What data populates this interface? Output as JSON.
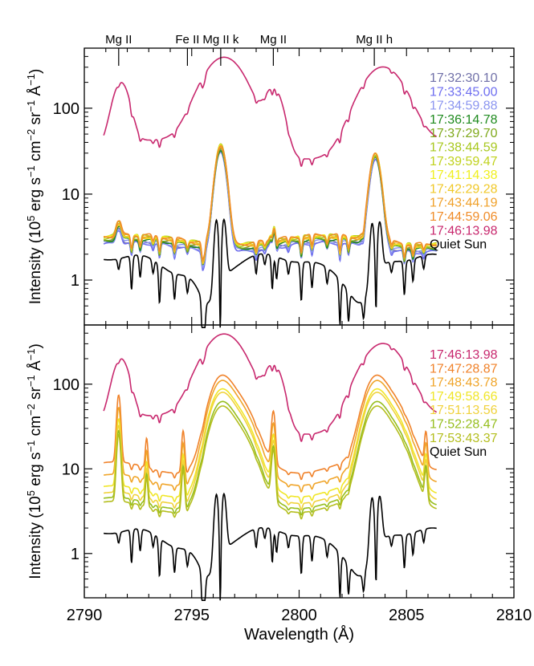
{
  "chart_data": [
    {
      "type": "line",
      "panel": "top",
      "yscale": "log",
      "xlim": [
        2790,
        2810
      ],
      "ylim": [
        0.3,
        500
      ],
      "ylabel": {
        "pre": "Intensity (10",
        "sup1": "5",
        "mid1": " erg s",
        "sup2": "−1",
        "mid2": " cm",
        "sup3": "−2",
        "mid3": " sr",
        "sup4": "−1",
        "mid4": " Å",
        "sup5": "−1",
        "post": ")"
      },
      "yticks": [
        1,
        10,
        100
      ],
      "ytick_labels": [
        "1",
        "10",
        "100"
      ],
      "line_ids": [
        {
          "label": "Mg II",
          "x": 2791.6
        },
        {
          "label": "Fe II",
          "x": 2794.8
        },
        {
          "label": "Mg II k",
          "x": 2796.35
        },
        {
          "label": "Mg II",
          "x": 2798.8
        },
        {
          "label": "Mg II h",
          "x": 2803.5
        }
      ],
      "legend_position": "right",
      "series": [
        {
          "name": "17:32:30.10",
          "color": "#7070a8",
          "scale": 1.04
        },
        {
          "name": "17:33:45.00",
          "color": "#6e6ef0",
          "scale": 1.0
        },
        {
          "name": "17:34:59.88",
          "color": "#8c96f0",
          "scale": 1.05
        },
        {
          "name": "17:36:14.78",
          "color": "#1e8a1e",
          "scale": 1.1
        },
        {
          "name": "17:37:29.70",
          "color": "#7ea81a",
          "scale": 1.15
        },
        {
          "name": "17:38:44.59",
          "color": "#a8c81e",
          "scale": 1.2
        },
        {
          "name": "17:39:59.47",
          "color": "#c0d21e",
          "scale": 1.23
        },
        {
          "name": "17:41:14.38",
          "color": "#f0f01e",
          "scale": 1.2
        },
        {
          "name": "17:42:29.28",
          "color": "#f0c828",
          "scale": 1.18
        },
        {
          "name": "17:43:44.19",
          "color": "#f0a028",
          "scale": 1.21
        },
        {
          "name": "17:44:59.06",
          "color": "#f08c28",
          "scale": 1.25
        },
        {
          "name": "17:46:13.98",
          "color": "#c8286e",
          "scale": 0
        },
        {
          "name": "Quiet Sun",
          "color": "#000000",
          "scale": 0
        }
      ]
    },
    {
      "type": "line",
      "panel": "bottom",
      "yscale": "log",
      "xlim": [
        2790,
        2810
      ],
      "ylim": [
        0.3,
        500
      ],
      "xlabel": "Wavelength (Å)",
      "ylabel": {
        "pre": "Intensity (10",
        "sup1": "5",
        "mid1": " erg s",
        "sup2": "−1",
        "mid2": " cm",
        "sup3": "−2",
        "mid3": " sr",
        "sup4": "−1",
        "mid4": " Å",
        "sup5": "−1",
        "post": ")"
      },
      "xticks": [
        2790,
        2795,
        2800,
        2805,
        2810
      ],
      "xtick_labels": [
        "2790",
        "2795",
        "2800",
        "2805",
        "2810"
      ],
      "yticks": [
        1,
        10,
        100
      ],
      "ytick_labels": [
        "1",
        "10",
        "100"
      ],
      "legend_position": "right",
      "series": [
        {
          "name": "17:46:13.98",
          "color": "#c8286e",
          "base": 0,
          "peak": 0
        },
        {
          "name": "17:47:28.87",
          "color": "#f0822a",
          "base": 10.5,
          "peak": 170
        },
        {
          "name": "17:48:43.78",
          "color": "#f0a52a",
          "base": 7.5,
          "peak": 150
        },
        {
          "name": "17:49:58.66",
          "color": "#f0e628",
          "base": 5.5,
          "peak": 120
        },
        {
          "name": "17:51:13.56",
          "color": "#f0d23c",
          "base": 4.6,
          "peak": 110
        },
        {
          "name": "17:52:28.47",
          "color": "#96be1e",
          "base": 4.0,
          "peak": 85
        },
        {
          "name": "17:53:43.37",
          "color": "#b4be1e",
          "base": 3.6,
          "peak": 75
        },
        {
          "name": "Quiet Sun",
          "color": "#000000",
          "base": 0,
          "peak": 0
        }
      ]
    }
  ]
}
